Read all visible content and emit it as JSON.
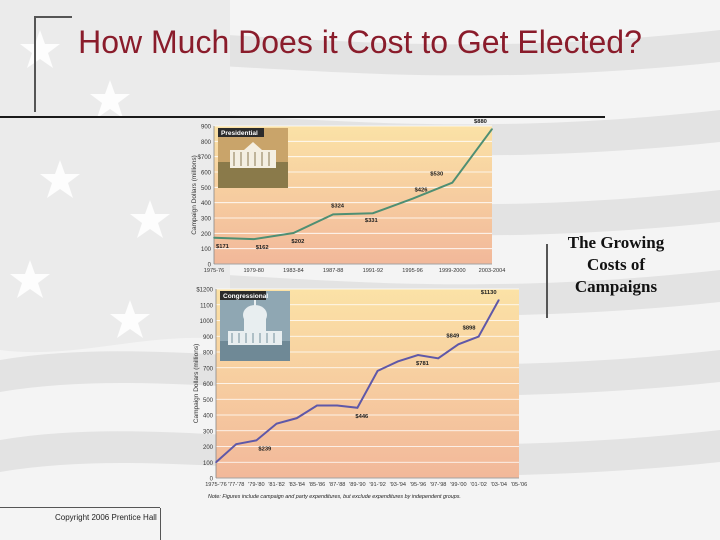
{
  "slide": {
    "title": "How Much Does it Cost to Get Elected?",
    "side_caption": "The Growing Costs of Campaigns",
    "copyright": "Copyright 2006 Prentice Hall"
  },
  "colors": {
    "title": "#8a1c2b",
    "presidential_line": "#4f8f73",
    "congressional_line": "#5f58a8",
    "label_box_bg": "#2b2b2b",
    "plot_top": "#fbe2a6",
    "plot_bottom": "#f2b89a"
  },
  "icons": [
    "white-house-photo",
    "capitol-photo",
    "us-flag-background"
  ],
  "chart_data": [
    {
      "type": "line",
      "label": "Presidential",
      "ylabel": "Campaign Dollars (millions)",
      "ylim": [
        0,
        900
      ],
      "y_ticks": [
        "0",
        "100",
        "200",
        "300",
        "400",
        "500",
        "600",
        "$700",
        "800",
        "900"
      ],
      "x_tick_labels": [
        "1975-76",
        "1979-80",
        "1983-84",
        "1987-88",
        "1991-92",
        "1995-96",
        "1999-2000",
        "2003-2004"
      ],
      "grid": true,
      "series": [
        {
          "values": [
            171,
            162,
            202,
            324,
            331,
            426,
            530,
            880
          ]
        }
      ],
      "data_labels": [
        {
          "index": 0,
          "text": "$171"
        },
        {
          "index": 1,
          "text": "$162"
        },
        {
          "index": 2,
          "text": "$202"
        },
        {
          "index": 3,
          "text": "$324"
        },
        {
          "index": 4,
          "text": "$331"
        },
        {
          "index": 5,
          "text": "$426"
        },
        {
          "index": 6,
          "text": "$530"
        },
        {
          "index": 7,
          "text": "$880"
        }
      ]
    },
    {
      "type": "line",
      "label": "Congressional",
      "ylabel": "Campaign Dollars (millions)",
      "ylim": [
        0,
        1200
      ],
      "y_ticks": [
        "0",
        "100",
        "200",
        "300",
        "400",
        "500",
        "600",
        "700",
        "800",
        "900",
        "1000",
        "1100",
        "$1200"
      ],
      "x_tick_labels": [
        "1975-'76",
        "'77-'78",
        "'79-'80",
        "'81-'82",
        "'83-'84",
        "'85-'86",
        "'87-'88",
        "'89-'90",
        "'91-'92",
        "'93-'94",
        "'95-'96",
        "'97-'98",
        "'99-'00",
        "'01-'02",
        "'03-'04",
        "'05-'06"
      ],
      "grid": true,
      "series": [
        {
          "values": [
            100,
            215,
            239,
            345,
            380,
            460,
            460,
            446,
            680,
            740,
            781,
            760,
            849,
            898,
            1130
          ]
        }
      ],
      "data_labels": [
        {
          "index": 2,
          "text": "$239"
        },
        {
          "index": 7,
          "text": "$446"
        },
        {
          "index": 10,
          "text": "$781"
        },
        {
          "index": 12,
          "text": "$849"
        },
        {
          "index": 13,
          "text": "$898"
        },
        {
          "index": 14,
          "text": "$1130"
        }
      ],
      "note": "Note: Figures include campaign and party expenditures, but exclude expenditures by independent groups."
    }
  ]
}
